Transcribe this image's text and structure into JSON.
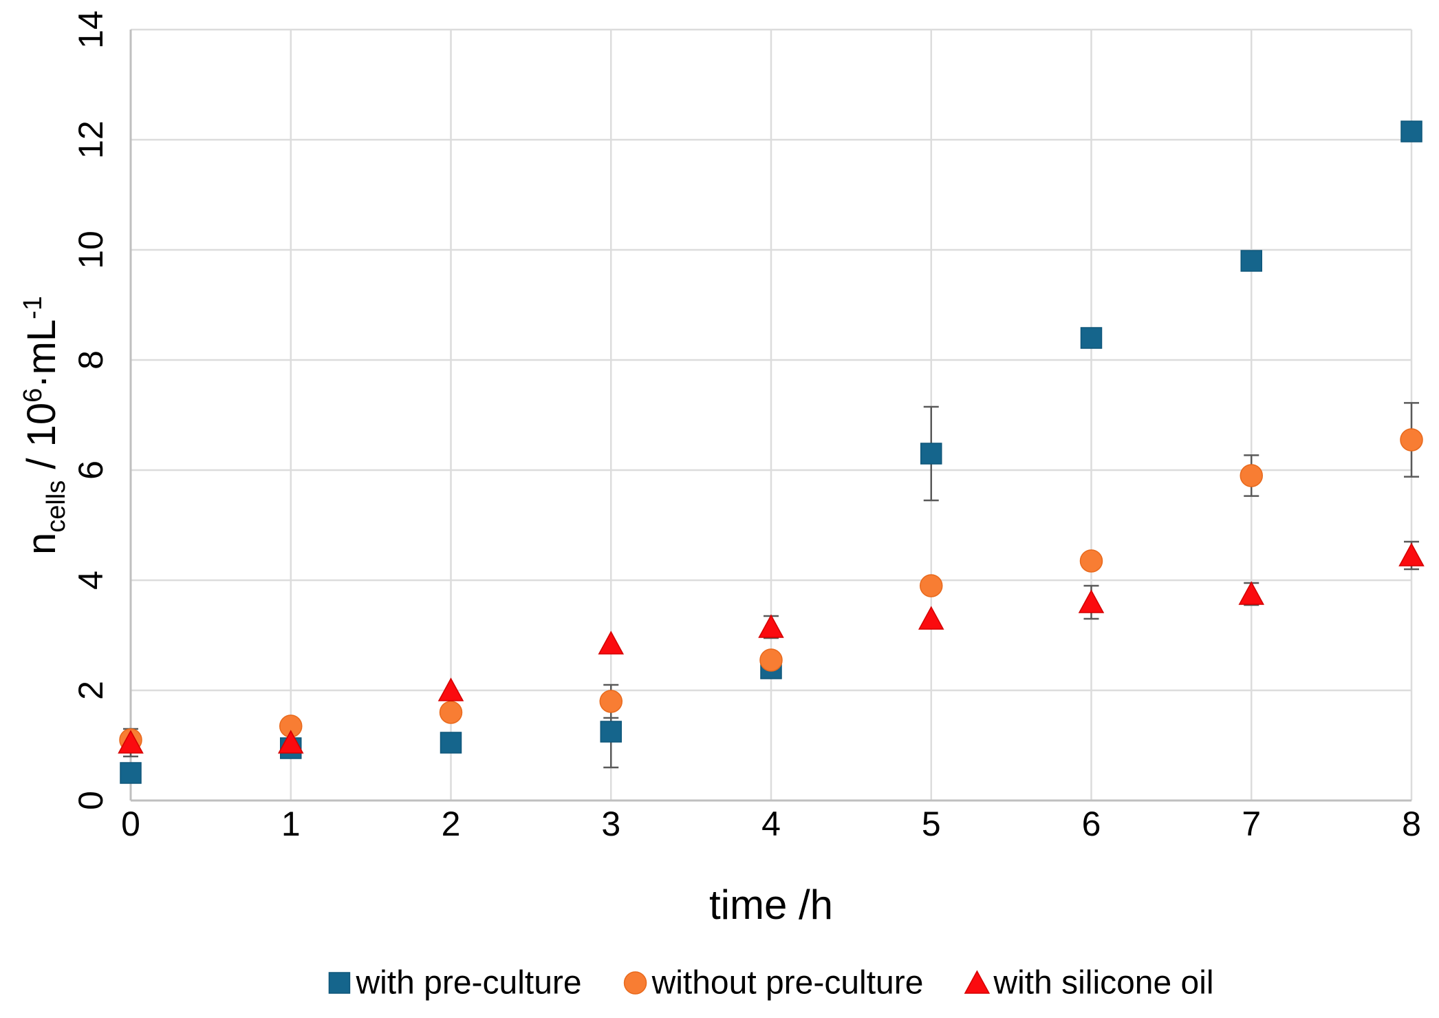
{
  "chart_data": {
    "type": "scatter",
    "title": "",
    "xlabel": "time /h",
    "ylabel": "n_cells / 10^6*mL^-1",
    "ylabel_rich": [
      {
        "t": "n",
        "style": "base"
      },
      {
        "t": "cells",
        "style": "sub"
      },
      {
        "t": " / 10",
        "style": "base"
      },
      {
        "t": "6",
        "style": "sup"
      },
      {
        "t": "·mL",
        "style": "base"
      },
      {
        "t": "-1",
        "style": "sup"
      }
    ],
    "xlim": [
      0,
      8
    ],
    "ylim": [
      0,
      14
    ],
    "xticks": [
      0,
      1,
      2,
      3,
      4,
      5,
      6,
      7,
      8
    ],
    "yticks": [
      0,
      2,
      4,
      6,
      8,
      10,
      12,
      14
    ],
    "grid": true,
    "legend_position": "bottom",
    "x": [
      0,
      1,
      2,
      3,
      4,
      5,
      6,
      7,
      8
    ],
    "series": [
      {
        "name": "with pre-culture",
        "marker": "square",
        "color": "#15658C",
        "edge_color": "#0E567A",
        "values": [
          0.5,
          0.95,
          1.05,
          1.25,
          2.4,
          6.3,
          8.4,
          9.8,
          12.15
        ],
        "errors": [
          0,
          0,
          0,
          0.65,
          0,
          0.85,
          0,
          0,
          0
        ]
      },
      {
        "name": "without pre-culture",
        "marker": "circle",
        "color": "#F87D33",
        "edge_color": "#E8691C",
        "values": [
          1.1,
          1.35,
          1.6,
          1.8,
          2.55,
          3.9,
          4.35,
          5.9,
          6.55
        ],
        "errors": [
          0,
          0,
          0,
          0.3,
          0,
          0,
          0,
          0.37,
          0.67
        ]
      },
      {
        "name": "with silicone oil",
        "marker": "triangle",
        "color": "#FB0B0F",
        "edge_color": "#D40000",
        "values": [
          1.05,
          1.05,
          2.0,
          2.85,
          3.15,
          3.3,
          3.6,
          3.75,
          4.45
        ],
        "errors": [
          0.25,
          0,
          0,
          0,
          0.2,
          0,
          0.3,
          0.2,
          0.25
        ]
      }
    ],
    "style": {
      "background": "#FFFFFF",
      "gridline_color": "#DCDCDC",
      "axis_color": "#BFBFBF",
      "error_bar_color": "#595959",
      "text_color": "#000000"
    }
  }
}
